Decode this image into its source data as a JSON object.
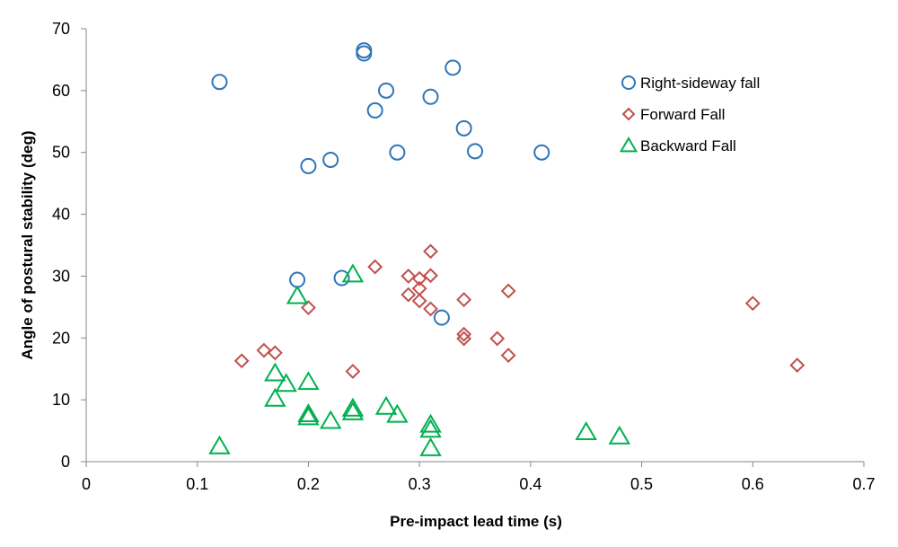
{
  "chart_data": {
    "type": "scatter",
    "title": "",
    "xlabel": "Pre-impact lead time (s)",
    "ylabel": "Angle of postural  stability (deg)",
    "xlim": [
      0,
      0.7
    ],
    "ylim": [
      0,
      70
    ],
    "x_ticks": [
      0,
      0.1,
      0.2,
      0.3,
      0.4,
      0.5,
      0.6,
      0.7
    ],
    "x_tick_labels": [
      "0",
      "0.1",
      "0.2",
      "0.3",
      "0.4",
      "0.5",
      "0.6",
      "0.7"
    ],
    "y_ticks": [
      0,
      10,
      20,
      30,
      40,
      50,
      60,
      70
    ],
    "y_tick_labels": [
      "0",
      "10",
      "20",
      "30",
      "40",
      "50",
      "60",
      "70"
    ],
    "grid": false,
    "legend_position": "top-right",
    "series": [
      {
        "name": "Right-sideway fall",
        "marker": "circle",
        "color": "#2E75B6",
        "points": [
          [
            0.12,
            61.4
          ],
          [
            0.25,
            66.5
          ],
          [
            0.25,
            66.0
          ],
          [
            0.33,
            63.7
          ],
          [
            0.27,
            60.0
          ],
          [
            0.31,
            59.0
          ],
          [
            0.26,
            56.8
          ],
          [
            0.34,
            53.9
          ],
          [
            0.35,
            50.2
          ],
          [
            0.41,
            50.0
          ],
          [
            0.28,
            50.0
          ],
          [
            0.22,
            48.8
          ],
          [
            0.2,
            47.8
          ],
          [
            0.19,
            29.4
          ],
          [
            0.23,
            29.7
          ],
          [
            0.32,
            23.3
          ]
        ]
      },
      {
        "name": "Forward Fall",
        "marker": "diamond",
        "color": "#C0504D",
        "points": [
          [
            0.31,
            34.0
          ],
          [
            0.26,
            31.5
          ],
          [
            0.29,
            30.0
          ],
          [
            0.3,
            29.6
          ],
          [
            0.31,
            30.1
          ],
          [
            0.3,
            28.0
          ],
          [
            0.29,
            27.0
          ],
          [
            0.3,
            26.0
          ],
          [
            0.34,
            26.2
          ],
          [
            0.38,
            27.6
          ],
          [
            0.2,
            24.9
          ],
          [
            0.31,
            24.7
          ],
          [
            0.34,
            20.6
          ],
          [
            0.34,
            19.9
          ],
          [
            0.37,
            19.9
          ],
          [
            0.16,
            18.0
          ],
          [
            0.17,
            17.6
          ],
          [
            0.38,
            17.2
          ],
          [
            0.14,
            16.3
          ],
          [
            0.24,
            14.6
          ],
          [
            0.6,
            25.6
          ],
          [
            0.64,
            15.6
          ]
        ]
      },
      {
        "name": "Backward Fall",
        "marker": "triangle",
        "color": "#00B050",
        "points": [
          [
            0.24,
            30.3
          ],
          [
            0.19,
            26.8
          ],
          [
            0.17,
            14.3
          ],
          [
            0.18,
            12.6
          ],
          [
            0.2,
            12.9
          ],
          [
            0.17,
            10.2
          ],
          [
            0.24,
            8.6
          ],
          [
            0.27,
            8.9
          ],
          [
            0.24,
            8.0
          ],
          [
            0.2,
            7.7
          ],
          [
            0.2,
            7.2
          ],
          [
            0.28,
            7.6
          ],
          [
            0.22,
            6.6
          ],
          [
            0.31,
            6.0
          ],
          [
            0.31,
            5.2
          ],
          [
            0.45,
            4.8
          ],
          [
            0.48,
            4.1
          ],
          [
            0.12,
            2.5
          ],
          [
            0.31,
            2.2
          ]
        ]
      }
    ]
  }
}
